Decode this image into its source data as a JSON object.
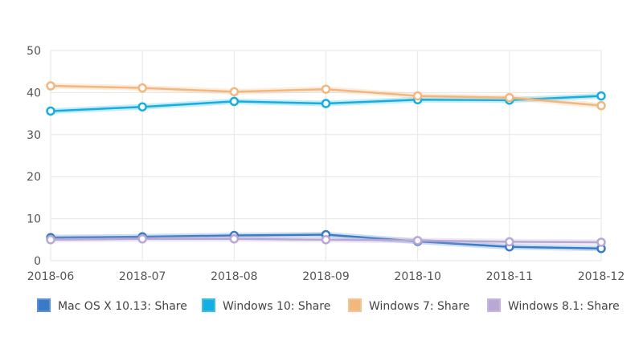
{
  "chart_data": {
    "type": "line",
    "x": [
      "2018-06",
      "2018-07",
      "2018-08",
      "2018-09",
      "2018-10",
      "2018-11",
      "2018-12"
    ],
    "ylim": [
      0,
      50
    ],
    "yticks": [
      0,
      10,
      20,
      30,
      40,
      50
    ],
    "grid": true,
    "legend_position": "bottom",
    "series": [
      {
        "name": "Mac OS X 10.13: Share",
        "color": "#3a7bc8",
        "values": [
          5.5,
          5.7,
          6.0,
          6.2,
          4.6,
          3.3,
          2.9
        ]
      },
      {
        "name": "Windows 10: Share",
        "color": "#15aee0",
        "values": [
          35.6,
          36.6,
          37.9,
          37.4,
          38.3,
          38.2,
          39.2
        ]
      },
      {
        "name": "Windows 7: Share",
        "color": "#f2b77e",
        "values": [
          41.6,
          41.1,
          40.2,
          40.8,
          39.2,
          38.8,
          36.9
        ]
      },
      {
        "name": "Windows 8.1: Share",
        "color": "#b9a8d4",
        "values": [
          5.0,
          5.2,
          5.2,
          5.0,
          4.8,
          4.5,
          4.4
        ]
      }
    ]
  }
}
